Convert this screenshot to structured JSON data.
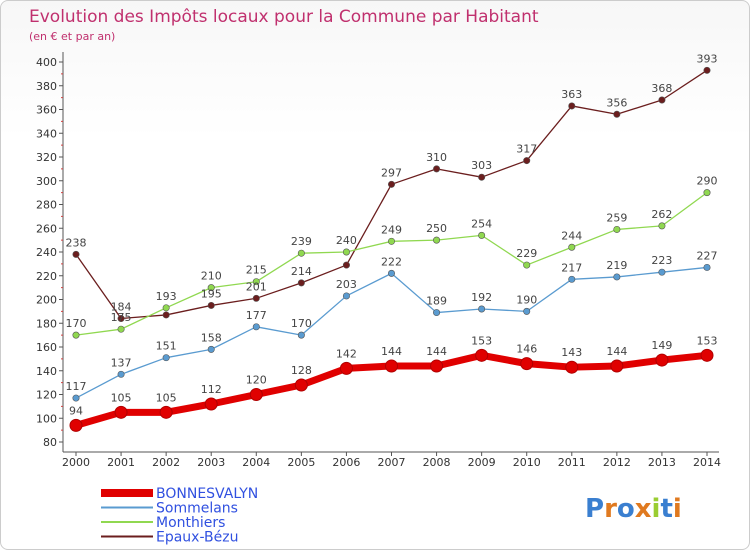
{
  "chart_data": {
    "type": "line",
    "title": "Evolution des Impôts locaux pour la Commune par Habitant",
    "subtitle": "(en € et par an)",
    "x": [
      "2000",
      "2001",
      "2002",
      "2003",
      "2004",
      "2005",
      "2006",
      "2007",
      "2008",
      "2009",
      "2010",
      "2011",
      "2012",
      "2013",
      "2014"
    ],
    "ylim": [
      80,
      400
    ],
    "yticks": [
      80,
      100,
      120,
      140,
      160,
      180,
      200,
      220,
      240,
      260,
      280,
      300,
      320,
      340,
      360,
      380,
      400
    ],
    "grid": false,
    "legend_position": "bottom-left",
    "series": [
      {
        "name": "Epaux-Bézu",
        "color": "#6b1e1e",
        "values": [
          238,
          184,
          187,
          195,
          201,
          214,
          229,
          297,
          310,
          303,
          317,
          363,
          356,
          368,
          393
        ],
        "labels": [
          "238",
          "184",
          "",
          "195",
          "201",
          "214",
          "",
          "297",
          "310",
          "303",
          "317",
          "363",
          "356",
          "368",
          "393"
        ]
      },
      {
        "name": "Monthiers",
        "color": "#90d850",
        "values": [
          170,
          175,
          193,
          210,
          215,
          239,
          240,
          249,
          250,
          254,
          229,
          244,
          259,
          262,
          290
        ],
        "labels": [
          "170",
          "175",
          "193",
          "210",
          "215",
          "239",
          "240",
          "249",
          "250",
          "254",
          "229",
          "244",
          "259",
          "262",
          "290"
        ]
      },
      {
        "name": "Sommelans",
        "color": "#5a9bd0",
        "values": [
          117,
          137,
          151,
          158,
          177,
          170,
          203,
          222,
          189,
          192,
          190,
          217,
          219,
          223,
          227
        ],
        "labels": [
          "117",
          "137",
          "151",
          "158",
          "177",
          "170",
          "203",
          "222",
          "189",
          "192",
          "190",
          "217",
          "219",
          "223",
          "227"
        ]
      },
      {
        "name": "BONNESVALYN",
        "color": "#e00000",
        "values": [
          94,
          105,
          105,
          112,
          120,
          128,
          142,
          144,
          144,
          153,
          146,
          143,
          144,
          149,
          153
        ],
        "labels": [
          "94",
          "105",
          "105",
          "112",
          "120",
          "128",
          "142",
          "144",
          "144",
          "153",
          "146",
          "143",
          "144",
          "149",
          "153"
        ]
      }
    ]
  },
  "legend": [
    {
      "name": "BONNESVALYN",
      "color": "#e00000",
      "text_color": "#3050e0"
    },
    {
      "name": "Sommelans",
      "color": "#5a9bd0",
      "text_color": "#3050e0"
    },
    {
      "name": "Monthiers",
      "color": "#90d850",
      "text_color": "#3050e0"
    },
    {
      "name": "Epaux-Bézu",
      "color": "#6b1e1e",
      "text_color": "#3050e0"
    }
  ],
  "brand": {
    "text": "Proxiti"
  }
}
